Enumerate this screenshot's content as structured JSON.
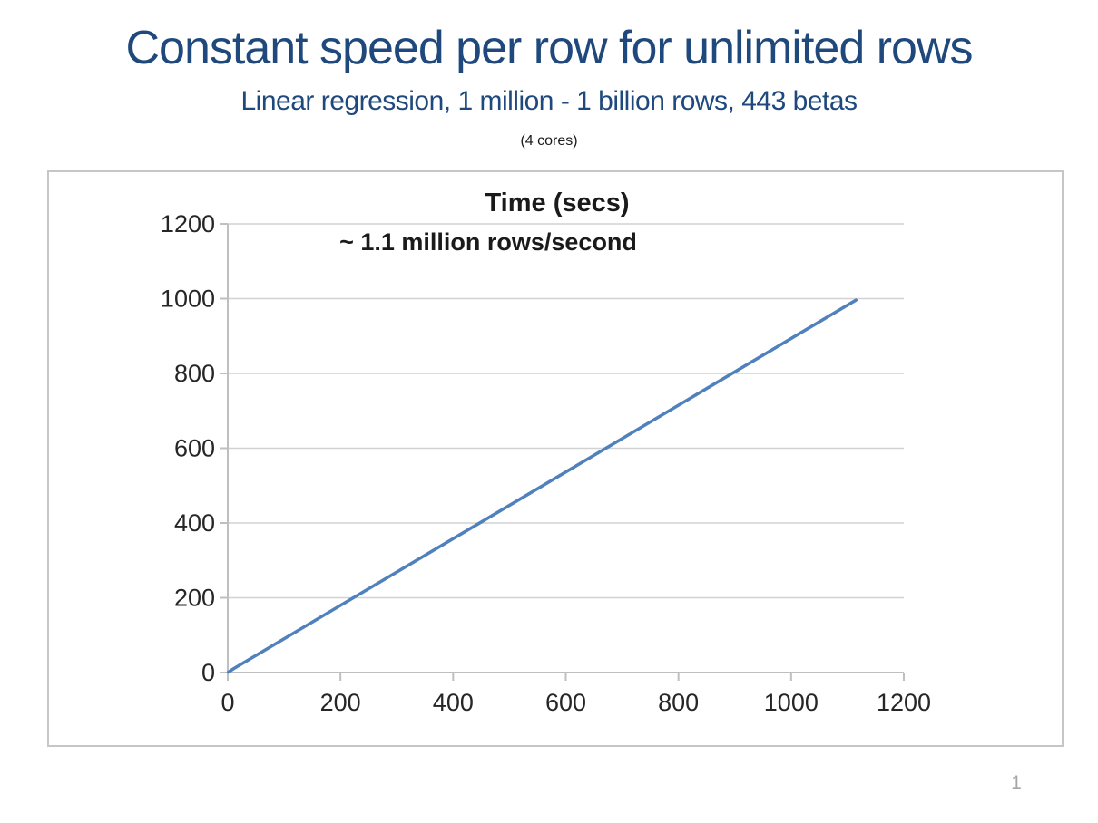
{
  "slide": {
    "title": "Constant speed per row for unlimited rows",
    "subtitle": "Linear regression, 1 million - 1 billion rows, 443 betas",
    "cores_note": "(4 cores)",
    "page_number": "1"
  },
  "colors": {
    "title_text": "#1F497D",
    "series_line": "#4F81BD",
    "gridline": "#D2D2D2",
    "axis_line": "#BFBFBF",
    "chart_border": "#C6C6C6",
    "tick_text": "#262626",
    "page_number_text": "#A6A6A6"
  },
  "chart_data": {
    "type": "line",
    "title": "Time (secs)",
    "annotation": "~ 1.1 million rows/second",
    "xlabel": "",
    "ylabel": "",
    "xlim": [
      0,
      1200
    ],
    "ylim": [
      0,
      1200
    ],
    "xticks": [
      0,
      200,
      400,
      600,
      800,
      1000,
      1200
    ],
    "yticks": [
      0,
      200,
      400,
      600,
      800,
      1000,
      1200
    ],
    "grid": "horizontal gridlines only",
    "legend": "none",
    "series": [
      {
        "name": "Time (secs)",
        "color": "#4F81BD",
        "points": [
          [
            1,
            1
          ],
          [
            10,
            10
          ],
          [
            1115,
            996
          ]
        ],
        "shape": "single straight line from origin, constant slope ~0.9 sec per unit x"
      }
    ]
  }
}
